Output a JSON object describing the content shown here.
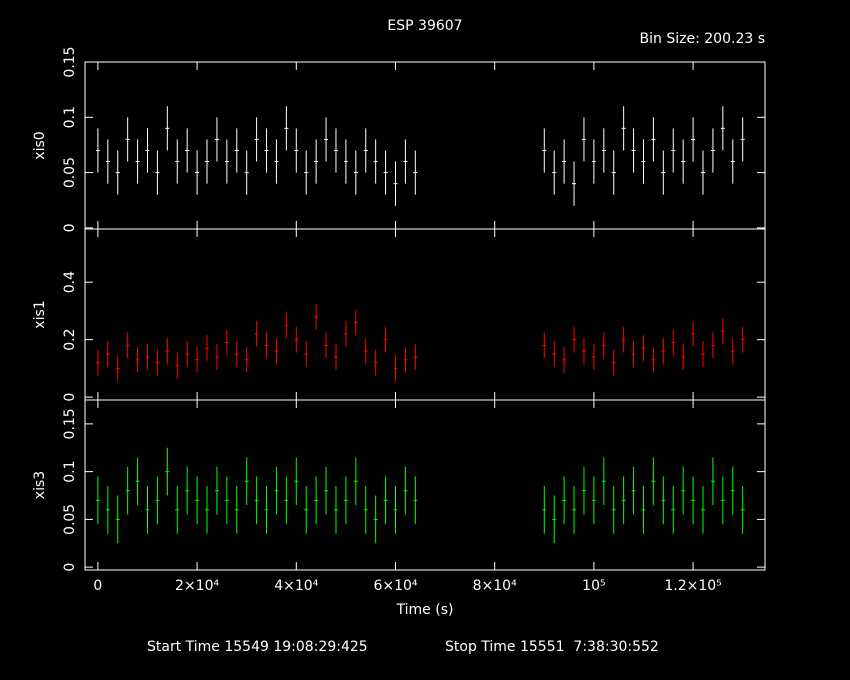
{
  "chart_data": {
    "type": "scatter",
    "title": "ESP 39607",
    "subtitle": "Bin Size: 200.23 s",
    "xlabel": "Time (s)",
    "start_time": "Start Time 15549 19:08:29:425",
    "stop_time": "Stop Time 15551  7:38:30:552",
    "xlim": [
      -2600,
      134500
    ],
    "xticks": [
      0,
      {
        "value": 20000,
        "label": "2×10⁴"
      },
      {
        "value": 40000,
        "label": "4×10⁴"
      },
      {
        "value": 60000,
        "label": "6×10⁴"
      },
      {
        "value": 80000,
        "label": "8×10⁴"
      },
      {
        "value": 100000,
        "label": "10⁵"
      },
      {
        "value": 120000,
        "label": "1.2×10⁵"
      }
    ],
    "x": [
      0,
      2000,
      4000,
      6000,
      8000,
      10000,
      12000,
      14000,
      16000,
      18000,
      20000,
      22000,
      24000,
      26000,
      28000,
      30000,
      32000,
      34000,
      36000,
      38000,
      40000,
      42000,
      44000,
      46000,
      48000,
      50000,
      52000,
      54000,
      56000,
      58000,
      60000,
      62000,
      64000,
      90000,
      92000,
      94000,
      96000,
      98000,
      100000,
      102000,
      104000,
      106000,
      108000,
      110000,
      112000,
      114000,
      116000,
      118000,
      120000,
      122000,
      124000,
      126000,
      128000,
      130000
    ],
    "series": [
      {
        "name": "xis0",
        "color": "#ffffff",
        "error": 0.02,
        "ylim": [
          -0.001,
          0.15
        ],
        "yticks": [
          0,
          0.05,
          0.1,
          0.15
        ],
        "values": [
          0.07,
          0.06,
          0.05,
          0.08,
          0.06,
          0.07,
          0.05,
          0.09,
          0.06,
          0.07,
          0.05,
          0.06,
          0.08,
          0.06,
          0.07,
          0.05,
          0.08,
          0.07,
          0.06,
          0.09,
          0.07,
          0.05,
          0.06,
          0.08,
          0.07,
          0.06,
          0.05,
          0.07,
          0.06,
          0.05,
          0.04,
          0.06,
          0.05,
          0.07,
          0.05,
          0.06,
          0.04,
          0.08,
          0.06,
          0.07,
          0.05,
          0.09,
          0.07,
          0.06,
          0.08,
          0.05,
          0.07,
          0.06,
          0.08,
          0.05,
          0.07,
          0.09,
          0.06,
          0.08
        ]
      },
      {
        "name": "xis1",
        "color": "#ff0000",
        "error": 0.045,
        "ylim": [
          -0.01,
          0.585
        ],
        "yticks": [
          0,
          0.2,
          0.4
        ],
        "values": [
          0.12,
          0.15,
          0.1,
          0.18,
          0.13,
          0.14,
          0.12,
          0.16,
          0.11,
          0.15,
          0.13,
          0.17,
          0.14,
          0.19,
          0.15,
          0.13,
          0.22,
          0.18,
          0.16,
          0.25,
          0.2,
          0.15,
          0.28,
          0.18,
          0.14,
          0.22,
          0.26,
          0.16,
          0.12,
          0.2,
          0.1,
          0.13,
          0.14,
          0.18,
          0.15,
          0.13,
          0.2,
          0.16,
          0.14,
          0.18,
          0.12,
          0.2,
          0.15,
          0.17,
          0.13,
          0.16,
          0.19,
          0.14,
          0.22,
          0.15,
          0.18,
          0.23,
          0.16,
          0.2
        ]
      },
      {
        "name": "xis3",
        "color": "#00ff00",
        "error": 0.025,
        "ylim": [
          -0.003,
          0.175
        ],
        "yticks": [
          0,
          0.05,
          0.1,
          0.15
        ],
        "values": [
          0.07,
          0.06,
          0.05,
          0.08,
          0.09,
          0.06,
          0.07,
          0.1,
          0.06,
          0.08,
          0.07,
          0.06,
          0.08,
          0.07,
          0.06,
          0.09,
          0.07,
          0.06,
          0.08,
          0.07,
          0.09,
          0.06,
          0.07,
          0.08,
          0.06,
          0.07,
          0.09,
          0.06,
          0.05,
          0.07,
          0.06,
          0.08,
          0.07,
          0.06,
          0.05,
          0.07,
          0.06,
          0.08,
          0.07,
          0.09,
          0.06,
          0.07,
          0.08,
          0.06,
          0.09,
          0.07,
          0.06,
          0.08,
          0.07,
          0.06,
          0.09,
          0.07,
          0.08,
          0.06
        ]
      }
    ]
  }
}
